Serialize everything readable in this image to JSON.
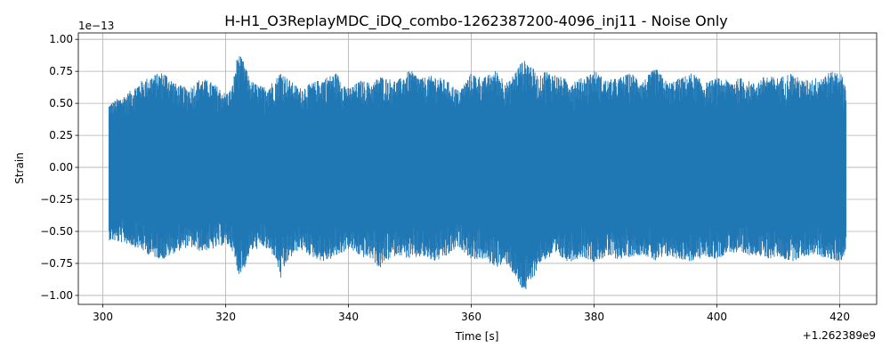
{
  "chart_data": {
    "type": "line",
    "title": "H-H1_O3ReplayMDC_iDQ_combo-1262387200-4096_inj11 - Noise Only",
    "xlabel": "Time [s]",
    "ylabel": "Strain",
    "x_offset_label": "+1.262389e9",
    "y_scale_label": "1e−13",
    "xlim": [
      296,
      426
    ],
    "ylim": [
      -1.07,
      1.05
    ],
    "x_ticks": [
      300,
      320,
      340,
      360,
      380,
      400,
      420
    ],
    "x_tick_labels": [
      "300",
      "320",
      "340",
      "360",
      "380",
      "400",
      "420"
    ],
    "y_ticks": [
      -1.0,
      -0.75,
      -0.5,
      -0.25,
      0.0,
      0.25,
      0.5,
      0.75,
      1.0
    ],
    "y_tick_labels": [
      "−1.00",
      "−0.75",
      "−0.50",
      "−0.25",
      "0.00",
      "0.25",
      "0.50",
      "0.75",
      "1.00"
    ],
    "grid": true,
    "series": [
      {
        "color": "#1f77b4",
        "x_range": [
          301,
          421
        ],
        "envelope_x": [
          301,
          304,
          306,
          308,
          310,
          312,
          314,
          316,
          318,
          320,
          321,
          322,
          323,
          324,
          326,
          328,
          329,
          330,
          332,
          334,
          336,
          337,
          338,
          340,
          342,
          344,
          345,
          346,
          348,
          350,
          352,
          354,
          356,
          358,
          360,
          362,
          364,
          366,
          368,
          369,
          370,
          371,
          372,
          374,
          376,
          378,
          380,
          382,
          384,
          386,
          388,
          390,
          392,
          394,
          396,
          398,
          400,
          402,
          404,
          406,
          408,
          410,
          412,
          414,
          416,
          418,
          420,
          421
        ],
        "envelope_upper": [
          0.5,
          0.58,
          0.67,
          0.72,
          0.75,
          0.65,
          0.62,
          0.7,
          0.66,
          0.58,
          0.62,
          0.9,
          0.82,
          0.68,
          0.63,
          0.68,
          0.76,
          0.7,
          0.62,
          0.66,
          0.7,
          0.72,
          0.74,
          0.62,
          0.68,
          0.66,
          0.72,
          0.7,
          0.68,
          0.76,
          0.7,
          0.72,
          0.68,
          0.6,
          0.74,
          0.7,
          0.76,
          0.66,
          0.82,
          0.84,
          0.78,
          0.7,
          0.76,
          0.72,
          0.68,
          0.7,
          0.76,
          0.68,
          0.7,
          0.74,
          0.68,
          0.78,
          0.66,
          0.7,
          0.74,
          0.66,
          0.7,
          0.68,
          0.7,
          0.66,
          0.72,
          0.7,
          0.74,
          0.68,
          0.7,
          0.74,
          0.76,
          0.64
        ],
        "envelope_lower": [
          -0.57,
          -0.6,
          -0.64,
          -0.7,
          -0.72,
          -0.66,
          -0.62,
          -0.66,
          -0.64,
          -0.6,
          -0.64,
          -0.84,
          -0.8,
          -0.66,
          -0.62,
          -0.7,
          -0.88,
          -0.74,
          -0.64,
          -0.7,
          -0.74,
          -0.72,
          -0.7,
          -0.64,
          -0.7,
          -0.72,
          -0.8,
          -0.74,
          -0.68,
          -0.72,
          -0.7,
          -0.74,
          -0.7,
          -0.62,
          -0.72,
          -0.72,
          -0.78,
          -0.76,
          -0.95,
          -0.97,
          -0.88,
          -0.76,
          -0.72,
          -0.7,
          -0.74,
          -0.7,
          -0.74,
          -0.7,
          -0.72,
          -0.7,
          -0.68,
          -0.74,
          -0.7,
          -0.72,
          -0.74,
          -0.7,
          -0.72,
          -0.66,
          -0.7,
          -0.68,
          -0.72,
          -0.7,
          -0.74,
          -0.7,
          -0.68,
          -0.72,
          -0.74,
          -0.68
        ]
      }
    ]
  }
}
